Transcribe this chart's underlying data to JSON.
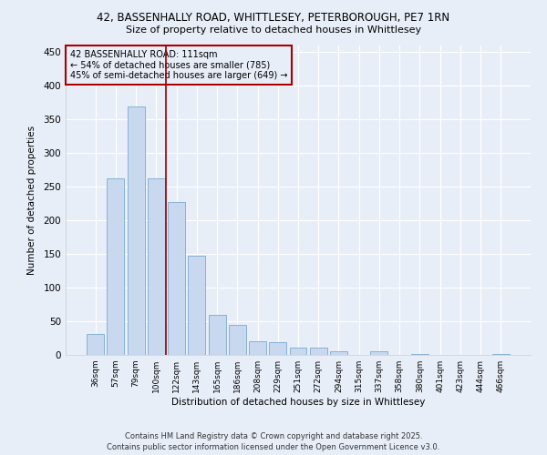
{
  "title_line1": "42, BASSENHALLY ROAD, WHITTLESEY, PETERBOROUGH, PE7 1RN",
  "title_line2": "Size of property relative to detached houses in Whittlesey",
  "xlabel": "Distribution of detached houses by size in Whittlesey",
  "ylabel": "Number of detached properties",
  "footer_line1": "Contains HM Land Registry data © Crown copyright and database right 2025.",
  "footer_line2": "Contains public sector information licensed under the Open Government Licence v3.0.",
  "categories": [
    "36sqm",
    "57sqm",
    "79sqm",
    "100sqm",
    "122sqm",
    "143sqm",
    "165sqm",
    "186sqm",
    "208sqm",
    "229sqm",
    "251sqm",
    "272sqm",
    "294sqm",
    "315sqm",
    "337sqm",
    "358sqm",
    "380sqm",
    "401sqm",
    "423sqm",
    "444sqm",
    "466sqm"
  ],
  "values": [
    31,
    262,
    369,
    262,
    227,
    148,
    59,
    45,
    20,
    19,
    11,
    11,
    6,
    0,
    6,
    0,
    1,
    0,
    0,
    0,
    1
  ],
  "bar_color": "#c8d8ee",
  "bar_edge_color": "#7aaad0",
  "vline_x": 3.5,
  "vline_color": "#990000",
  "annotation_title": "42 BASSENHALLY ROAD: 111sqm",
  "annotation_line1": "← 54% of detached houses are smaller (785)",
  "annotation_line2": "45% of semi-detached houses are larger (649) →",
  "annotation_box_color": "#aa0000",
  "ylim": [
    0,
    460
  ],
  "yticks": [
    0,
    50,
    100,
    150,
    200,
    250,
    300,
    350,
    400,
    450
  ],
  "background_color": "#e8eef8",
  "grid_color": "#ffffff"
}
